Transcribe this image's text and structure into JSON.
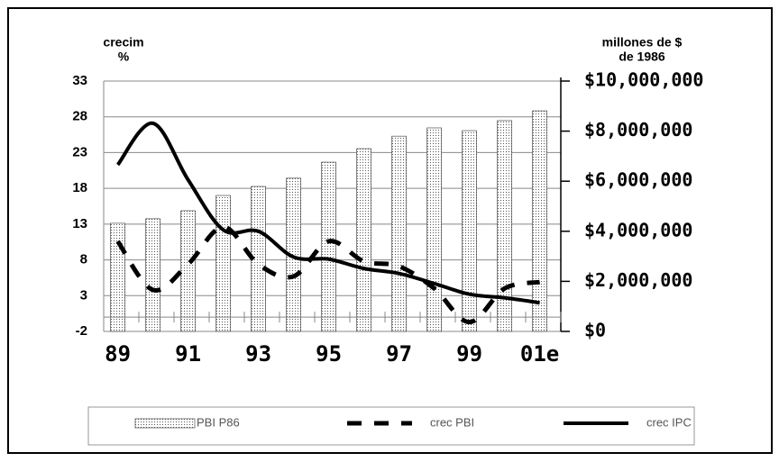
{
  "chart_data": {
    "type": "bar-line",
    "y_label_lines": [
      "crecim",
      "%"
    ],
    "y2_label_lines": [
      "millones de $",
      "de 1986"
    ],
    "categories": [
      "89",
      null,
      "91",
      null,
      "93",
      null,
      "95",
      null,
      "97",
      null,
      "99",
      null,
      "01e"
    ],
    "series": [
      {
        "name": "PBI P86",
        "type": "bar",
        "axis": "y2",
        "color": "#cccccc",
        "values": [
          4320000,
          4500000,
          4820000,
          5430000,
          5790000,
          6120000,
          6760000,
          7300000,
          7800000,
          8130000,
          8020000,
          8420000,
          8810000
        ]
      },
      {
        "name": "crec PBI",
        "type": "line",
        "dashed": true,
        "color": "#000000",
        "values": [
          10.6,
          3.8,
          7.4,
          12.6,
          7.4,
          5.7,
          10.6,
          7.8,
          7.1,
          4.0,
          -0.7,
          4.0,
          4.9
        ]
      },
      {
        "name": "crec IPC",
        "type": "line",
        "dashed": false,
        "color": "#000000",
        "values": [
          21.3,
          27.1,
          19.2,
          12.2,
          12.0,
          8.4,
          8.1,
          6.8,
          6.1,
          4.7,
          3.2,
          2.7,
          2.0
        ]
      }
    ],
    "ylim": [
      -2,
      33
    ],
    "yticks": [
      -2,
      3,
      8,
      13,
      18,
      23,
      28,
      33
    ],
    "y2lim": [
      0,
      10000000
    ],
    "y2ticks": [
      {
        "value": 0,
        "label": "$0"
      },
      {
        "value": 2000000,
        "label": "$2,000,000"
      },
      {
        "value": 4000000,
        "label": "$4,000,000"
      },
      {
        "value": 6000000,
        "label": "$6,000,000"
      },
      {
        "value": 8000000,
        "label": "$8,000,000"
      },
      {
        "value": 10000000,
        "label": "$10,000,000"
      }
    ],
    "grid": true,
    "legend": "bottom"
  }
}
